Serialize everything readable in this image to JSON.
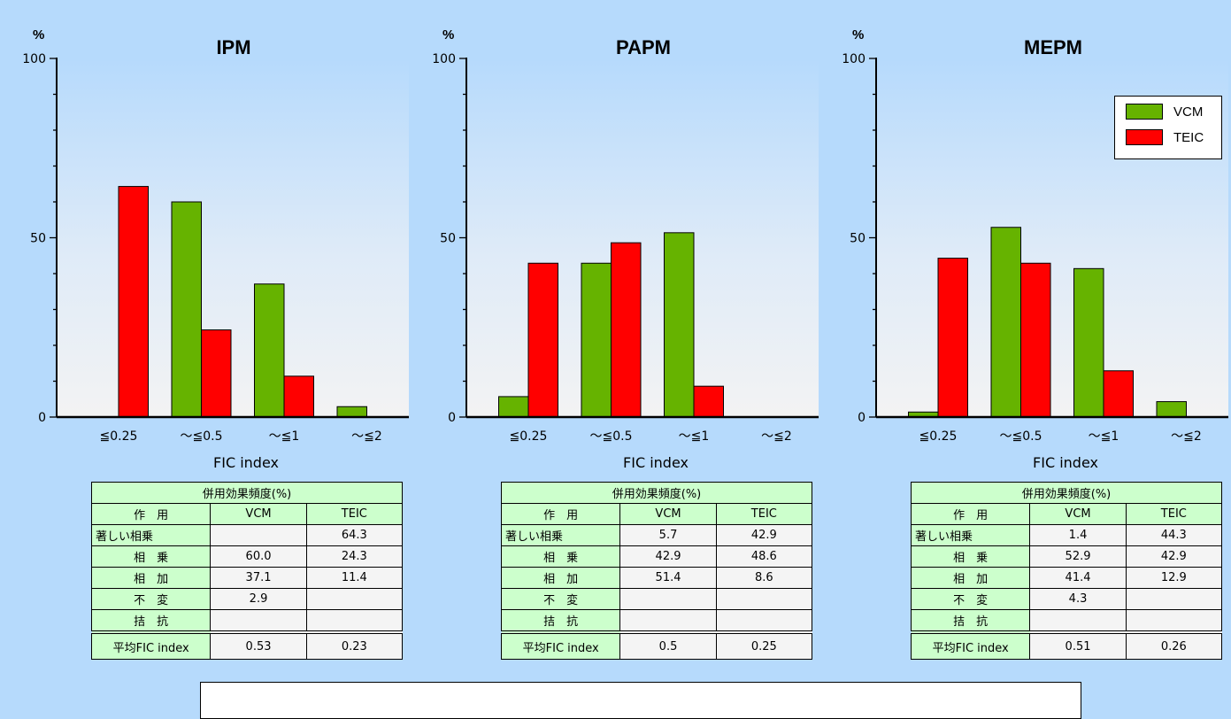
{
  "colors": {
    "VCM": "#66b300",
    "TEIC": "#ff0000",
    "table_label_bg": "#ccffcc",
    "background": "#b6dafc"
  },
  "legend": [
    {
      "name": "VCM",
      "color": "#66b300"
    },
    {
      "name": "TEIC",
      "color": "#ff0000"
    }
  ],
  "chart_data": [
    {
      "type": "bar",
      "title": "IPM",
      "ylabel": "%",
      "xlabel": "FIC index",
      "ylim": [
        0,
        100
      ],
      "yticks": [
        "0",
        "50",
        "100"
      ],
      "categories": [
        "≦0.25",
        "～≦0.5",
        "～≦1",
        "～≦2"
      ],
      "series": [
        {
          "name": "VCM",
          "values": [
            null,
            60.0,
            37.1,
            2.9
          ]
        },
        {
          "name": "TEIC",
          "values": [
            64.3,
            24.3,
            11.4,
            null
          ]
        }
      ]
    },
    {
      "type": "bar",
      "title": "PAPM",
      "ylabel": "%",
      "xlabel": "FIC index",
      "ylim": [
        0,
        100
      ],
      "yticks": [
        "0",
        "50",
        "100"
      ],
      "categories": [
        "≦0.25",
        "～≦0.5",
        "～≦1",
        "～≦2"
      ],
      "series": [
        {
          "name": "VCM",
          "values": [
            5.7,
            42.9,
            51.4,
            null
          ]
        },
        {
          "name": "TEIC",
          "values": [
            42.9,
            48.6,
            8.6,
            null
          ]
        }
      ]
    },
    {
      "type": "bar",
      "title": "MEPM",
      "ylabel": "%",
      "xlabel": "FIC index",
      "ylim": [
        0,
        100
      ],
      "yticks": [
        "0",
        "50",
        "100"
      ],
      "categories": [
        "≦0.25",
        "～≦0.5",
        "～≦1",
        "～≦2"
      ],
      "series": [
        {
          "name": "VCM",
          "values": [
            1.4,
            52.9,
            41.4,
            4.3
          ]
        },
        {
          "name": "TEIC",
          "values": [
            44.3,
            42.9,
            12.9,
            null
          ]
        }
      ]
    }
  ],
  "tables": [
    {
      "title": "併用効果頻度(%)",
      "headers": [
        "作　用",
        "VCM",
        "TEIC"
      ],
      "rows": [
        [
          "著しい相乗",
          "",
          "64.3"
        ],
        [
          "相　乗",
          "60.0",
          "24.3"
        ],
        [
          "相　加",
          "37.1",
          "11.4"
        ],
        [
          "不　変",
          "2.9",
          ""
        ],
        [
          "拮　抗",
          "",
          ""
        ]
      ],
      "avg": [
        "平均FIC index",
        "0.53",
        "0.23"
      ]
    },
    {
      "title": "併用効果頻度(%)",
      "headers": [
        "作　用",
        "VCM",
        "TEIC"
      ],
      "rows": [
        [
          "著しい相乗",
          "5.7",
          "42.9"
        ],
        [
          "相　乗",
          "42.9",
          "48.6"
        ],
        [
          "相　加",
          "51.4",
          "8.6"
        ],
        [
          "不　変",
          "",
          ""
        ],
        [
          "拮　抗",
          "",
          ""
        ]
      ],
      "avg": [
        "平均FIC index",
        "0.5",
        "0.25"
      ]
    },
    {
      "title": "併用効果頻度(%)",
      "headers": [
        "作　用",
        "VCM",
        "TEIC"
      ],
      "rows": [
        [
          "著しい相乗",
          "1.4",
          "44.3"
        ],
        [
          "相　乗",
          "52.9",
          "42.9"
        ],
        [
          "相　加",
          "41.4",
          "12.9"
        ],
        [
          "不　変",
          "4.3",
          ""
        ],
        [
          "拮　抗",
          "",
          ""
        ]
      ],
      "avg": [
        "平均FIC index",
        "0.51",
        "0.26"
      ]
    }
  ]
}
